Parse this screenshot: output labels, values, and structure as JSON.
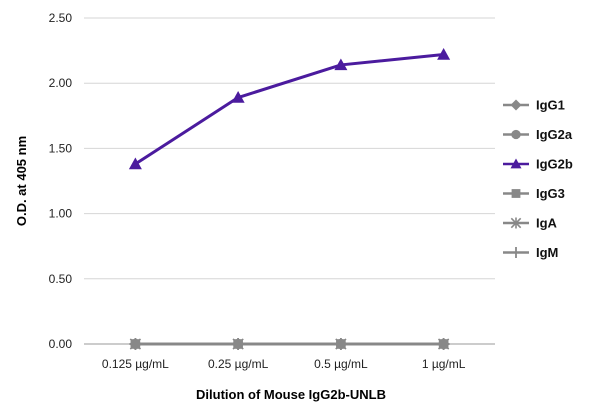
{
  "chart_data": {
    "type": "line",
    "categories": [
      "0.125 µg/mL",
      "0.25 µg/mL",
      "0.5 µg/mL",
      "1 µg/mL"
    ],
    "xlabel": "Dilution of Mouse IgG2b-UNLB",
    "ylabel": "O.D. at 405 nm",
    "ylim": [
      0,
      2.5
    ],
    "yticks": [
      "0.00",
      "0.50",
      "1.00",
      "1.50",
      "2.00",
      "2.50"
    ],
    "grid": "horizontal",
    "legend": "right",
    "series": [
      {
        "name": "IgG1",
        "values": [
          0,
          0,
          0,
          0
        ],
        "color": "#888888",
        "marker": "diamond"
      },
      {
        "name": "IgG2a",
        "values": [
          0,
          0,
          0,
          0
        ],
        "color": "#888888",
        "marker": "circle"
      },
      {
        "name": "IgG2b",
        "values": [
          1.38,
          1.89,
          2.14,
          2.22
        ],
        "color": "#4b1b9e",
        "marker": "triangle"
      },
      {
        "name": "IgG3",
        "values": [
          0,
          0,
          0,
          0
        ],
        "color": "#888888",
        "marker": "square"
      },
      {
        "name": "IgA",
        "values": [
          0,
          0,
          0,
          0
        ],
        "color": "#888888",
        "marker": "star"
      },
      {
        "name": "IgM",
        "values": [
          0,
          0,
          0,
          0
        ],
        "color": "#888888",
        "marker": "plus"
      }
    ]
  }
}
